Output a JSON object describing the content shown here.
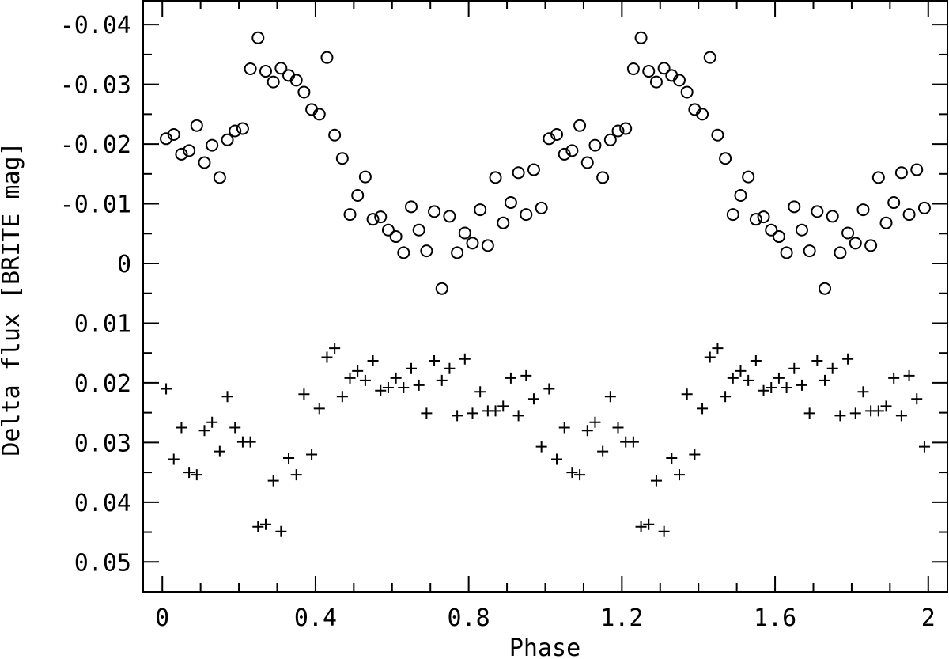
{
  "chart_data": {
    "type": "scatter",
    "title": "",
    "xlabel": "Phase",
    "ylabel": "Delta flux [BRITE mag]",
    "xlim": [
      -0.05,
      2.05
    ],
    "ylim": [
      0.055,
      -0.044
    ],
    "y_inverted": true,
    "grid": false,
    "legend": "none",
    "x_ticks": [
      {
        "value": 0,
        "label": "0"
      },
      {
        "value": 0.4,
        "label": "0.4"
      },
      {
        "value": 0.8,
        "label": "0.8"
      },
      {
        "value": 1.2,
        "label": "1.2"
      },
      {
        "value": 1.6,
        "label": "1.6"
      },
      {
        "value": 2.0,
        "label": "2"
      }
    ],
    "y_ticks": [
      {
        "value": -0.04,
        "label": "-0.04"
      },
      {
        "value": -0.03,
        "label": "-0.03"
      },
      {
        "value": -0.02,
        "label": "-0.02"
      },
      {
        "value": -0.01,
        "label": "-0.01"
      },
      {
        "value": 0,
        "label": "0"
      },
      {
        "value": 0.01,
        "label": "0.01"
      },
      {
        "value": 0.02,
        "label": "0.02"
      },
      {
        "value": 0.03,
        "label": "0.03"
      },
      {
        "value": 0.04,
        "label": "0.04"
      },
      {
        "value": 0.05,
        "label": "0.05"
      }
    ],
    "series": [
      {
        "marker": "open-circle",
        "points": [
          [
            0.01,
            -0.0209
          ],
          [
            0.03,
            -0.0216
          ],
          [
            0.05,
            -0.0183
          ],
          [
            0.07,
            -0.0189
          ],
          [
            0.09,
            -0.0231
          ],
          [
            0.11,
            -0.0169
          ],
          [
            0.13,
            -0.0198
          ],
          [
            0.15,
            -0.0144
          ],
          [
            0.17,
            -0.0207
          ],
          [
            0.19,
            -0.0222
          ],
          [
            0.21,
            -0.0226
          ],
          [
            0.23,
            -0.0326
          ],
          [
            0.25,
            -0.0378
          ],
          [
            0.27,
            -0.0322
          ],
          [
            0.29,
            -0.0304
          ],
          [
            0.31,
            -0.0327
          ],
          [
            0.33,
            -0.0315
          ],
          [
            0.35,
            -0.0307
          ],
          [
            0.37,
            -0.0287
          ],
          [
            0.39,
            -0.0258
          ],
          [
            0.41,
            -0.025
          ],
          [
            0.43,
            -0.0345
          ],
          [
            0.45,
            -0.0215
          ],
          [
            0.47,
            -0.0176
          ],
          [
            0.49,
            -0.0082
          ],
          [
            0.51,
            -0.0114
          ],
          [
            0.53,
            -0.0145
          ],
          [
            0.55,
            -0.0074
          ],
          [
            0.57,
            -0.0078
          ],
          [
            0.59,
            -0.0056
          ],
          [
            0.61,
            -0.0045
          ],
          [
            0.63,
            -0.0018
          ],
          [
            0.65,
            -0.0095
          ],
          [
            0.67,
            -0.0056
          ],
          [
            0.69,
            -0.0021
          ],
          [
            0.71,
            -0.0087
          ],
          [
            0.73,
            0.0042
          ],
          [
            0.75,
            -0.0079
          ],
          [
            0.77,
            -0.0018
          ],
          [
            0.79,
            -0.0051
          ],
          [
            0.81,
            -0.0034
          ],
          [
            0.83,
            -0.009
          ],
          [
            0.85,
            -0.003
          ],
          [
            0.87,
            -0.0144
          ],
          [
            0.89,
            -0.0068
          ],
          [
            0.91,
            -0.0102
          ],
          [
            0.93,
            -0.0152
          ],
          [
            0.95,
            -0.0082
          ],
          [
            0.97,
            -0.0157
          ],
          [
            0.99,
            -0.0093
          ],
          [
            1.01,
            -0.0209
          ],
          [
            1.03,
            -0.0216
          ],
          [
            1.05,
            -0.0183
          ],
          [
            1.07,
            -0.0189
          ],
          [
            1.09,
            -0.0231
          ],
          [
            1.11,
            -0.0169
          ],
          [
            1.13,
            -0.0198
          ],
          [
            1.15,
            -0.0144
          ],
          [
            1.17,
            -0.0207
          ],
          [
            1.19,
            -0.0222
          ],
          [
            1.21,
            -0.0226
          ],
          [
            1.23,
            -0.0326
          ],
          [
            1.25,
            -0.0378
          ],
          [
            1.27,
            -0.0322
          ],
          [
            1.29,
            -0.0304
          ],
          [
            1.31,
            -0.0327
          ],
          [
            1.33,
            -0.0315
          ],
          [
            1.35,
            -0.0307
          ],
          [
            1.37,
            -0.0287
          ],
          [
            1.39,
            -0.0258
          ],
          [
            1.41,
            -0.025
          ],
          [
            1.43,
            -0.0345
          ],
          [
            1.45,
            -0.0215
          ],
          [
            1.47,
            -0.0176
          ],
          [
            1.49,
            -0.0082
          ],
          [
            1.51,
            -0.0114
          ],
          [
            1.53,
            -0.0145
          ],
          [
            1.55,
            -0.0074
          ],
          [
            1.57,
            -0.0078
          ],
          [
            1.59,
            -0.0056
          ],
          [
            1.61,
            -0.0045
          ],
          [
            1.63,
            -0.0018
          ],
          [
            1.65,
            -0.0095
          ],
          [
            1.67,
            -0.0056
          ],
          [
            1.69,
            -0.0021
          ],
          [
            1.71,
            -0.0087
          ],
          [
            1.73,
            0.0042
          ],
          [
            1.75,
            -0.0079
          ],
          [
            1.77,
            -0.0018
          ],
          [
            1.79,
            -0.0051
          ],
          [
            1.81,
            -0.0034
          ],
          [
            1.83,
            -0.009
          ],
          [
            1.85,
            -0.003
          ],
          [
            1.87,
            -0.0144
          ],
          [
            1.89,
            -0.0068
          ],
          [
            1.91,
            -0.0102
          ],
          [
            1.93,
            -0.0152
          ],
          [
            1.95,
            -0.0082
          ],
          [
            1.97,
            -0.0157
          ],
          [
            1.99,
            -0.0093
          ]
        ]
      },
      {
        "marker": "plus",
        "points": [
          [
            0.01,
            0.021
          ],
          [
            0.03,
            0.0328
          ],
          [
            0.05,
            0.0275
          ],
          [
            0.07,
            0.035
          ],
          [
            0.09,
            0.0354
          ],
          [
            0.11,
            0.028
          ],
          [
            0.13,
            0.0266
          ],
          [
            0.15,
            0.0315
          ],
          [
            0.17,
            0.0223
          ],
          [
            0.19,
            0.0275
          ],
          [
            0.21,
            0.0299
          ],
          [
            0.23,
            0.0299
          ],
          [
            0.25,
            0.0441
          ],
          [
            0.27,
            0.0437
          ],
          [
            0.29,
            0.0364
          ],
          [
            0.31,
            0.0449
          ],
          [
            0.33,
            0.0326
          ],
          [
            0.35,
            0.0354
          ],
          [
            0.37,
            0.0219
          ],
          [
            0.39,
            0.032
          ],
          [
            0.41,
            0.0243
          ],
          [
            0.43,
            0.0157
          ],
          [
            0.45,
            0.0142
          ],
          [
            0.47,
            0.0223
          ],
          [
            0.49,
            0.0192
          ],
          [
            0.51,
            0.018
          ],
          [
            0.53,
            0.0196
          ],
          [
            0.55,
            0.0163
          ],
          [
            0.57,
            0.0213
          ],
          [
            0.59,
            0.0208
          ],
          [
            0.61,
            0.0192
          ],
          [
            0.63,
            0.0208
          ],
          [
            0.65,
            0.0176
          ],
          [
            0.67,
            0.0204
          ],
          [
            0.69,
            0.0251
          ],
          [
            0.71,
            0.0163
          ],
          [
            0.73,
            0.0196
          ],
          [
            0.75,
            0.0176
          ],
          [
            0.77,
            0.0255
          ],
          [
            0.79,
            0.016
          ],
          [
            0.81,
            0.0251
          ],
          [
            0.83,
            0.0215
          ],
          [
            0.85,
            0.0247
          ],
          [
            0.87,
            0.0247
          ],
          [
            0.89,
            0.0239
          ],
          [
            0.91,
            0.0192
          ],
          [
            0.93,
            0.0255
          ],
          [
            0.95,
            0.0188
          ],
          [
            0.97,
            0.0227
          ],
          [
            0.99,
            0.0307
          ],
          [
            1.01,
            0.021
          ],
          [
            1.03,
            0.0328
          ],
          [
            1.05,
            0.0275
          ],
          [
            1.07,
            0.035
          ],
          [
            1.09,
            0.0354
          ],
          [
            1.11,
            0.028
          ],
          [
            1.13,
            0.0266
          ],
          [
            1.15,
            0.0315
          ],
          [
            1.17,
            0.0223
          ],
          [
            1.19,
            0.0275
          ],
          [
            1.21,
            0.0299
          ],
          [
            1.23,
            0.0299
          ],
          [
            1.25,
            0.0441
          ],
          [
            1.27,
            0.0437
          ],
          [
            1.29,
            0.0364
          ],
          [
            1.31,
            0.0449
          ],
          [
            1.33,
            0.0326
          ],
          [
            1.35,
            0.0354
          ],
          [
            1.37,
            0.0219
          ],
          [
            1.39,
            0.032
          ],
          [
            1.41,
            0.0243
          ],
          [
            1.43,
            0.0157
          ],
          [
            1.45,
            0.0142
          ],
          [
            1.47,
            0.0223
          ],
          [
            1.49,
            0.0192
          ],
          [
            1.51,
            0.018
          ],
          [
            1.53,
            0.0196
          ],
          [
            1.55,
            0.0163
          ],
          [
            1.57,
            0.0213
          ],
          [
            1.59,
            0.0208
          ],
          [
            1.61,
            0.0192
          ],
          [
            1.63,
            0.0208
          ],
          [
            1.65,
            0.0176
          ],
          [
            1.67,
            0.0204
          ],
          [
            1.69,
            0.0251
          ],
          [
            1.71,
            0.0163
          ],
          [
            1.73,
            0.0196
          ],
          [
            1.75,
            0.0176
          ],
          [
            1.77,
            0.0255
          ],
          [
            1.79,
            0.016
          ],
          [
            1.81,
            0.0251
          ],
          [
            1.83,
            0.0215
          ],
          [
            1.85,
            0.0247
          ],
          [
            1.87,
            0.0247
          ],
          [
            1.89,
            0.0239
          ],
          [
            1.91,
            0.0192
          ],
          [
            1.93,
            0.0255
          ],
          [
            1.95,
            0.0188
          ],
          [
            1.97,
            0.0227
          ],
          [
            1.99,
            0.0307
          ]
        ]
      }
    ]
  }
}
